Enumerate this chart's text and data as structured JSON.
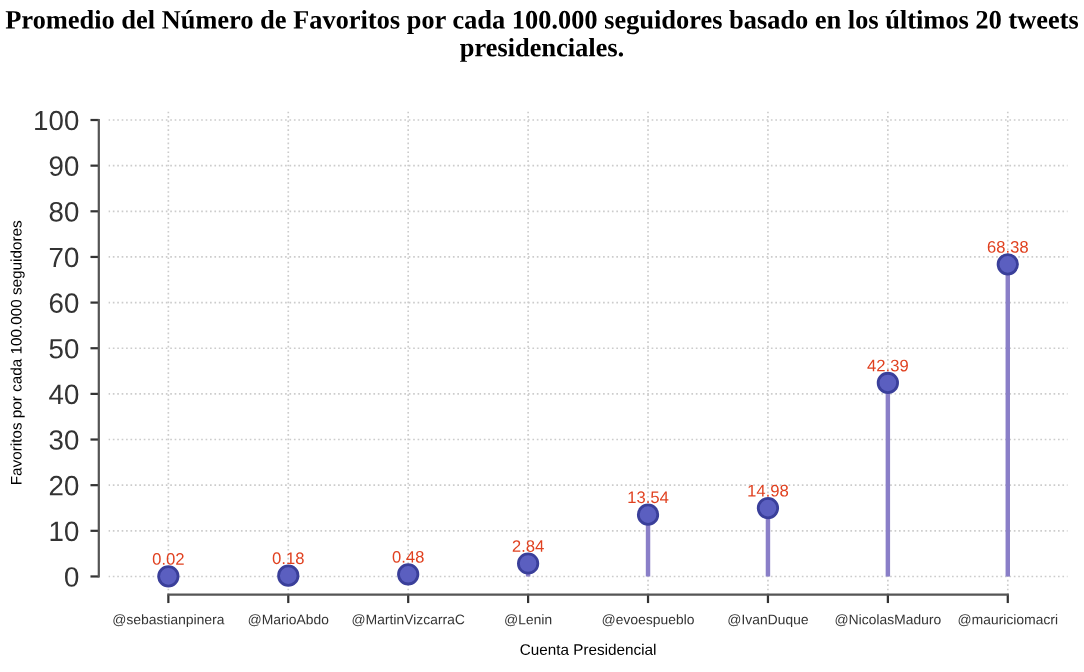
{
  "chart_data": {
    "type": "lollipop",
    "title": "Promedio del Número de Favoritos por cada 100.000 seguidores basado en los últimos 20 tweets presidenciales.",
    "xlabel": "Cuenta Presidencial",
    "ylabel": "Favoritos por cada 100.000 seguidores",
    "categories": [
      "@sebastianpinera",
      "@MarioAbdo",
      "@MartinVizcarraC",
      "@Lenin",
      "@evoespueblo",
      "@IvanDuque",
      "@NicolasMaduro",
      "@mauriciomacri"
    ],
    "values": [
      0.02,
      0.18,
      0.48,
      2.84,
      13.54,
      14.98,
      42.39,
      68.38
    ],
    "color": "#5b5fc0",
    "data_labels": true,
    "marker": "circle",
    "grid": true,
    "ylim": [
      0,
      100
    ],
    "yticks": [
      0,
      10,
      20,
      30,
      40,
      50,
      60,
      70,
      80,
      90,
      100
    ]
  }
}
